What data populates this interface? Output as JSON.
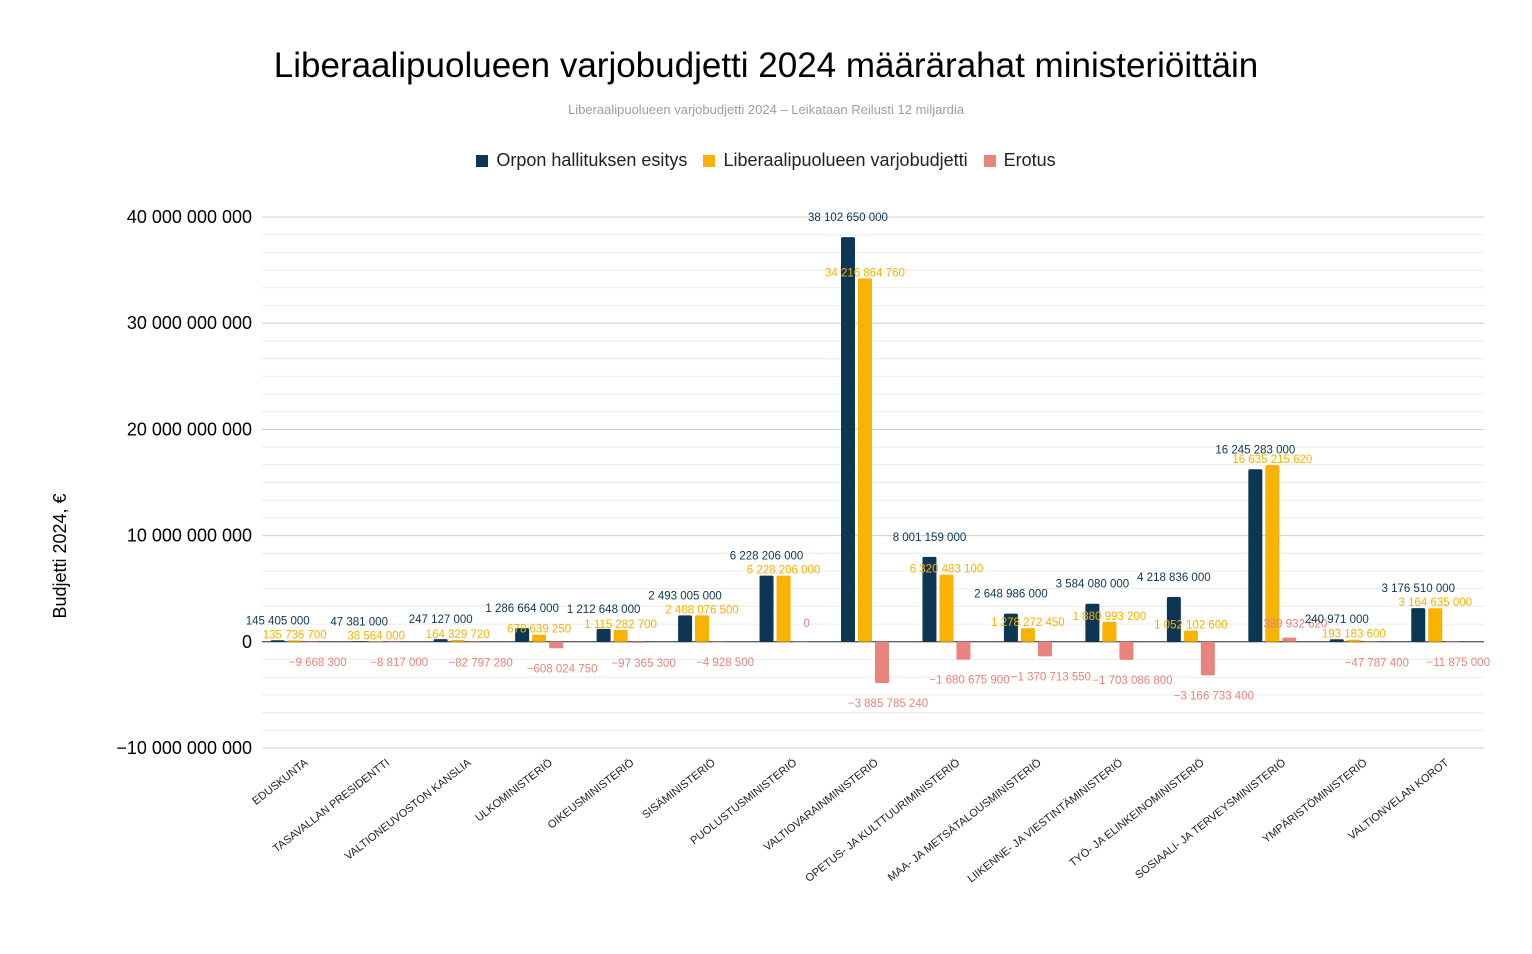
{
  "chart_data": {
    "type": "bar",
    "title": "Liberaalipuolueen varjobudjetti 2024 määrärahat ministeriöittäin",
    "subtitle": "Liberaalipuolueen varjobudjetti 2024 – Leikataan Reilusti 12 miljardia",
    "ylabel": "Budjetti 2024, €",
    "xlabel": "",
    "ylim": [
      -10000000000,
      40000000000
    ],
    "yticks": [
      {
        "value": 40000000000,
        "label": "40 000 000 000"
      },
      {
        "value": 30000000000,
        "label": "30 000 000 000"
      },
      {
        "value": 20000000000,
        "label": "20 000 000 000"
      },
      {
        "value": 10000000000,
        "label": "10 000 000 000"
      },
      {
        "value": 0,
        "label": "0"
      },
      {
        "value": -10000000000,
        "label": "−10 000 000 000"
      }
    ],
    "grid": true,
    "legend_position": "top",
    "categories": [
      "EDUSKUNTA",
      "TASAVALLAN PRESIDENTTI",
      "VALTIONEUVOSTON KANSLIA",
      "ULKOMINISTERIÖ",
      "OIKEUSMINISTERIÖ",
      "SISÄMINISTERIÖ",
      "PUOLUSTUSMINISTERIÖ",
      "VALTIOVARAINMINISTERIÖ",
      "OPETUS- JA KULTTUURIMINISTERIÖ",
      "MAA- JA METSÄTALOUSMINISTERIÖ",
      "LIIKENNE- JA VIESTINTÄMINISTERIÖ",
      "TYÖ- JA ELINKEINOMINISTERIÖ",
      "SOSIAALI- JA TERVEYSMINISTERIÖ",
      "YMPÄRISTÖMINISTERIÖ",
      "VALTIONVELAN KOROT"
    ],
    "series": [
      {
        "name": "Orpon hallituksen esitys",
        "color": "#0d3655",
        "values": [
          145405000,
          47381000,
          247127000,
          1286664000,
          1212648000,
          2493005000,
          6228206000,
          38102650000,
          8001159000,
          2648986000,
          3584080000,
          4218836000,
          16245283000,
          240971000,
          3176510000
        ],
        "labels": [
          "145 405 000",
          "47 381 000",
          "247 127 000",
          "1 286 664 000",
          "1 212 648 000",
          "2 493 005 000",
          "6 228 206 000",
          "38 102 650 000",
          "8 001 159 000",
          "2 648 986 000",
          "3 584 080 000",
          "4 218 836 000",
          "16 245 283 000",
          "240 971 000",
          "3 176 510 000"
        ]
      },
      {
        "name": "Liberaalipuolueen varjobudjetti",
        "color": "#f9b200",
        "values": [
          135736700,
          38564000,
          164329720,
          678639250,
          1115282700,
          2488076500,
          6228206000,
          34216864760,
          6320483100,
          1278272450,
          1880993200,
          1052102600,
          16635215620,
          193183600,
          3164635000
        ],
        "labels": [
          "135 736 700",
          "38 564 000",
          "164 329 720",
          "678 639 250",
          "1 115 282 700",
          "2 488 076 500",
          "6 228 206 000",
          "34 216 864 760",
          "6 320 483 100",
          "1 278 272 450",
          "1 880 993 200",
          "1 052 102 600",
          "16 635 215 620",
          "193 183 600",
          "3 164 635 000"
        ]
      },
      {
        "name": "Erotus",
        "color": "#e8837d",
        "values": [
          -9668300,
          -8817000,
          -82797280,
          -608024750,
          -97365300,
          -4928500,
          0,
          -3885785240,
          -1680675900,
          -1370713550,
          -1703086800,
          -3166733400,
          389932620,
          -47787400,
          -11875000
        ],
        "labels": [
          "−9 668 300",
          "−8 817 000",
          "−82 797 280",
          "−608 024 750",
          "−97 365 300",
          "−4 928 500",
          "0",
          "−3 885 785 240",
          "−1 680 675 900",
          "−1 370 713 550",
          "−1 703 086 800",
          "−3 166 733 400",
          "389 932 620",
          "−47 787 400",
          "−11 875 000"
        ]
      }
    ]
  }
}
